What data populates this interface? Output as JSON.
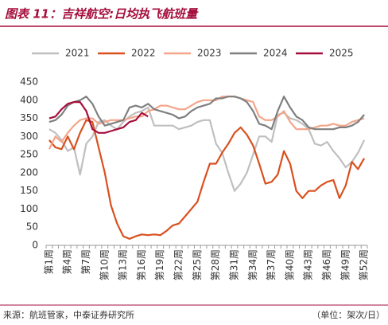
{
  "title": "图表 11：吉祥航空:日均执飞航班量",
  "source": "来源：航班管家，中泰证券研究所",
  "unit": "（单位：架次/日）",
  "chart_data": {
    "type": "line",
    "categories": [
      "第1周",
      null,
      null,
      "第4周",
      null,
      null,
      "第7周",
      null,
      null,
      "第10周",
      null,
      null,
      "第13周",
      null,
      null,
      "第16周",
      null,
      null,
      "第19周",
      null,
      null,
      "第22周",
      null,
      null,
      "第25周",
      null,
      null,
      "第28周",
      null,
      null,
      "第31周",
      null,
      null,
      "第34周",
      null,
      null,
      "第37周",
      null,
      null,
      "第40周",
      null,
      null,
      "第43周",
      null,
      null,
      "第46周",
      null,
      null,
      "第49周",
      null,
      null,
      "第52周"
    ],
    "ylim": [
      0,
      450
    ],
    "yticks": [
      0,
      50,
      100,
      150,
      200,
      250,
      300,
      350,
      400,
      450
    ],
    "series": [
      {
        "name": "2021",
        "color": "#bfbfbf",
        "values": [
          320,
          310,
          290,
          260,
          270,
          195,
          280,
          300,
          340,
          345,
          330,
          320,
          340,
          355,
          365,
          370,
          380,
          330,
          330,
          330,
          330,
          320,
          325,
          330,
          340,
          345,
          345,
          280,
          255,
          200,
          150,
          170,
          200,
          250,
          300,
          300,
          285,
          360,
          365,
          350,
          345,
          335,
          320,
          280,
          275,
          285,
          260,
          240,
          215,
          230,
          255,
          290
        ]
      },
      {
        "name": "2022",
        "color": "#d9501e",
        "values": [
          290,
          270,
          265,
          300,
          265,
          310,
          345,
          340,
          270,
          200,
          110,
          60,
          25,
          18,
          25,
          30,
          28,
          30,
          28,
          40,
          55,
          60,
          80,
          100,
          120,
          175,
          225,
          225,
          255,
          280,
          310,
          325,
          305,
          275,
          225,
          170,
          175,
          195,
          260,
          225,
          150,
          130,
          150,
          150,
          165,
          175,
          180,
          130,
          165,
          230,
          210,
          240
        ]
      },
      {
        "name": "2023",
        "color": "#f4a58a",
        "values": [
          265,
          300,
          285,
          310,
          330,
          345,
          350,
          350,
          335,
          340,
          345,
          345,
          345,
          350,
          355,
          355,
          370,
          375,
          385,
          385,
          380,
          375,
          375,
          385,
          395,
          400,
          400,
          400,
          410,
          410,
          410,
          405,
          400,
          395,
          355,
          345,
          345,
          355,
          370,
          340,
          320,
          320,
          320,
          325,
          330,
          330,
          335,
          330,
          330,
          340,
          345,
          350
        ]
      },
      {
        "name": "2024",
        "color": "#7f7f7f",
        "values": [
          340,
          345,
          360,
          385,
          395,
          400,
          410,
          390,
          355,
          330,
          335,
          340,
          345,
          380,
          385,
          380,
          390,
          375,
          370,
          365,
          360,
          350,
          355,
          370,
          380,
          385,
          390,
          405,
          405,
          410,
          410,
          405,
          395,
          370,
          335,
          330,
          320,
          370,
          410,
          380,
          355,
          345,
          325,
          320,
          320,
          320,
          320,
          325,
          325,
          330,
          340,
          360
        ]
      },
      {
        "name": "2025",
        "color": "#a50f3c",
        "values": [
          350,
          355,
          375,
          390,
          395,
          395,
          370,
          320,
          310,
          310,
          315,
          320,
          325,
          340,
          345,
          365,
          355,
          null,
          null,
          null,
          null,
          null,
          null,
          null,
          null,
          null,
          null,
          null,
          null,
          null,
          null,
          null,
          null,
          null,
          null,
          null,
          null,
          null,
          null,
          null,
          null,
          null,
          null,
          null,
          null,
          null,
          null,
          null,
          null,
          null,
          null,
          null
        ]
      }
    ]
  }
}
